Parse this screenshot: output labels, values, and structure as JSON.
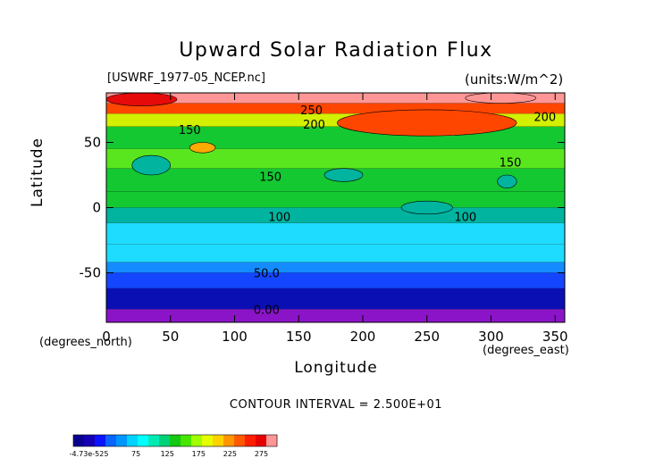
{
  "chart_data": {
    "type": "heatmap",
    "title": "Upward Solar Radiation Flux",
    "subtitle_left": "[USWRF_1977-05_NCEP.nc]",
    "subtitle_right": "(units:W/m^2)",
    "xlabel": "Longitude",
    "ylabel": "Latitude",
    "x_unit": "(degrees_east)",
    "y_unit": "(degrees_north)",
    "xlim": [
      0,
      357.5
    ],
    "ylim": [
      -88,
      88
    ],
    "x_ticks": [
      0,
      50,
      100,
      150,
      200,
      250,
      300,
      350
    ],
    "y_ticks": [
      -50,
      0,
      50
    ],
    "contour_interval_text": "CONTOUR INTERVAL = 2.500E+01",
    "contour_levels": [
      0,
      25,
      50,
      75,
      100,
      125,
      150,
      175,
      200,
      225,
      250,
      275
    ],
    "contour_labels": [
      {
        "text": "250",
        "lon": 160,
        "lat": 75
      },
      {
        "text": "200",
        "lon": 162,
        "lat": 64
      },
      {
        "text": "200",
        "lon": 342,
        "lat": 70
      },
      {
        "text": "150",
        "lon": 65,
        "lat": 60
      },
      {
        "text": "150",
        "lon": 128,
        "lat": 24
      },
      {
        "text": "150",
        "lon": 315,
        "lat": 35
      },
      {
        "text": "100",
        "lon": 135,
        "lat": -7
      },
      {
        "text": "100",
        "lon": 280,
        "lat": -7
      },
      {
        "text": "50.0",
        "lon": 125,
        "lat": -50
      },
      {
        "text": "0.00",
        "lon": 125,
        "lat": -78
      }
    ],
    "latitude_bands": [
      {
        "lat_from": 80,
        "lat_to": 88,
        "value": 275
      },
      {
        "lat_from": 72,
        "lat_to": 80,
        "value": 235
      },
      {
        "lat_from": 62,
        "lat_to": 72,
        "value": 185
      },
      {
        "lat_from": 45,
        "lat_to": 62,
        "value": 145
      },
      {
        "lat_from": 30,
        "lat_to": 45,
        "value": 165
      },
      {
        "lat_from": 12,
        "lat_to": 30,
        "value": 140
      },
      {
        "lat_from": 0,
        "lat_to": 12,
        "value": 130
      },
      {
        "lat_from": -12,
        "lat_to": 0,
        "value": 100
      },
      {
        "lat_from": -28,
        "lat_to": -12,
        "value": 90
      },
      {
        "lat_from": -42,
        "lat_to": -28,
        "value": 80
      },
      {
        "lat_from": -50,
        "lat_to": -42,
        "value": 65
      },
      {
        "lat_from": -62,
        "lat_to": -50,
        "value": 40
      },
      {
        "lat_from": -78,
        "lat_to": -62,
        "value": 10
      },
      {
        "lat_from": -88,
        "lat_to": -78,
        "value": -5
      }
    ],
    "regions": [
      {
        "lon_from": 0,
        "lon_to": 55,
        "lat_from": 78,
        "lat_to": 88,
        "value": 250
      },
      {
        "lon_from": 180,
        "lon_to": 320,
        "lat_from": 55,
        "lat_to": 75,
        "value": 230
      },
      {
        "lon_from": 280,
        "lon_to": 335,
        "lat_from": 80,
        "lat_to": 88,
        "value": 290
      },
      {
        "lon_from": 20,
        "lon_to": 50,
        "lat_from": 25,
        "lat_to": 40,
        "value": 100
      },
      {
        "lon_from": 65,
        "lon_to": 85,
        "lat_from": 42,
        "lat_to": 50,
        "value": 220
      },
      {
        "lon_from": 170,
        "lon_to": 200,
        "lat_from": 20,
        "lat_to": 30,
        "value": 105
      },
      {
        "lon_from": 305,
        "lon_to": 320,
        "lat_from": 15,
        "lat_to": 25,
        "value": 100
      },
      {
        "lon_from": 230,
        "lon_to": 270,
        "lat_from": -5,
        "lat_to": 5,
        "value": 110
      }
    ],
    "colorbar": {
      "tick_labels": [
        "-4.73e-525",
        "75",
        "125",
        "175",
        "225",
        "275"
      ],
      "tick_values": [
        0,
        75,
        125,
        175,
        225,
        275
      ],
      "range": [
        -25,
        300
      ],
      "colors": [
        "#0a0090",
        "#1400b4",
        "#0a14ff",
        "#0a64ff",
        "#0096ff",
        "#00d2ff",
        "#00ffff",
        "#00ebb4",
        "#00d278",
        "#14c814",
        "#46e600",
        "#a0ff00",
        "#e6ff00",
        "#ffd200",
        "#ff9600",
        "#ff5a00",
        "#ff1e00",
        "#e60000",
        "#ff9696"
      ]
    },
    "level_colors": [
      {
        "min": -100,
        "color": "#8c14c8"
      },
      {
        "min": 0,
        "color": "#0a0fb4"
      },
      {
        "min": 25,
        "color": "#1446ff"
      },
      {
        "min": 50,
        "color": "#148cff"
      },
      {
        "min": 75,
        "color": "#1edcff"
      },
      {
        "min": 100,
        "color": "#00b4a0"
      },
      {
        "min": 125,
        "color": "#14c832"
      },
      {
        "min": 150,
        "color": "#5ae61e"
      },
      {
        "min": 175,
        "color": "#d2f000"
      },
      {
        "min": 200,
        "color": "#ffaa00"
      },
      {
        "min": 225,
        "color": "#ff4600"
      },
      {
        "min": 250,
        "color": "#e60a0a"
      },
      {
        "min": 275,
        "color": "#ff9696"
      }
    ]
  }
}
